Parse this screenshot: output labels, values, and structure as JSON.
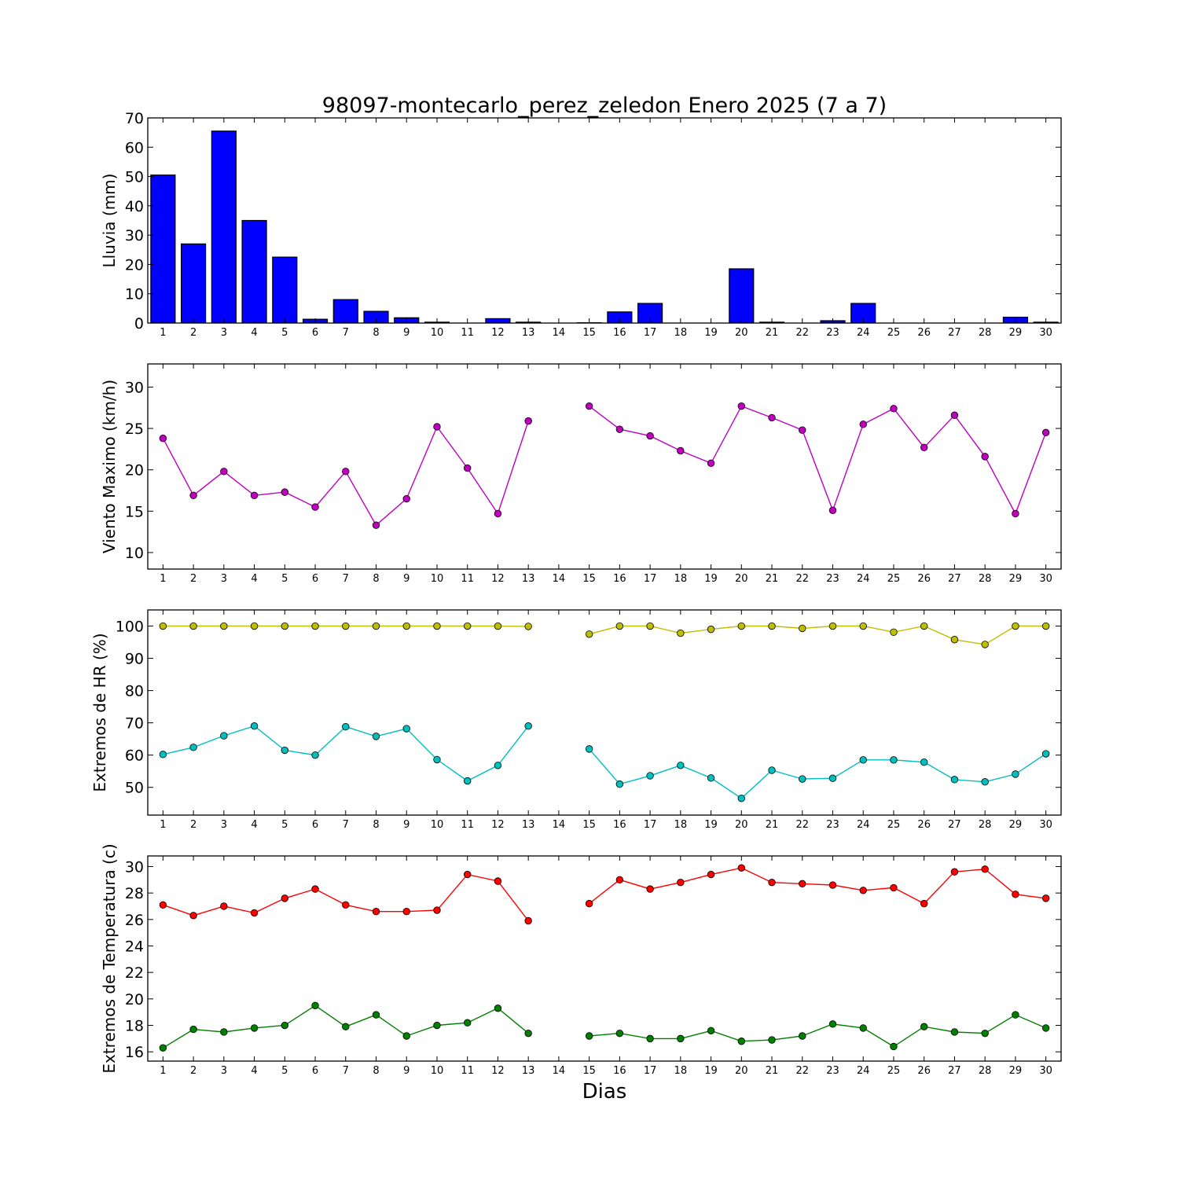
{
  "chart_data": {
    "title": "98097-montecarlo_perez_zeledon Enero 2025  (7 a 7)",
    "xlabel": "Dias",
    "days": [
      1,
      2,
      3,
      4,
      5,
      6,
      7,
      8,
      9,
      10,
      11,
      12,
      13,
      14,
      15,
      16,
      17,
      18,
      19,
      20,
      21,
      22,
      23,
      24,
      25,
      26,
      27,
      28,
      29,
      30
    ],
    "panels": [
      {
        "type": "bar",
        "ylabel": "Lluvia (mm)",
        "ylim": [
          0,
          70
        ],
        "yticks": [
          0,
          10,
          20,
          30,
          40,
          50,
          60,
          70
        ],
        "series": [
          {
            "color": "#0000ff",
            "values": [
              50.5,
              27.0,
              65.5,
              35.0,
              22.5,
              1.3,
              8.0,
              4.0,
              1.8,
              0.3,
              0,
              1.5,
              0.3,
              0,
              0.1,
              3.8,
              6.7,
              0,
              0,
              18.5,
              0.3,
              0,
              0.8,
              6.7,
              0,
              0,
              0,
              0,
              2.0,
              0.3
            ]
          }
        ]
      },
      {
        "type": "line",
        "ylabel": "Viento Maximo (km/h)",
        "ylim": [
          8,
          32.8
        ],
        "yticks": [
          10,
          15,
          20,
          25,
          30
        ],
        "series": [
          {
            "color": "#bf00bf",
            "values": [
              23.8,
              16.9,
              19.8,
              16.9,
              17.3,
              15.5,
              19.8,
              13.3,
              16.5,
              25.2,
              20.2,
              14.7,
              25.9,
              null,
              27.7,
              24.9,
              24.1,
              22.3,
              20.8,
              27.7,
              26.3,
              24.8,
              15.1,
              25.5,
              27.4,
              22.7,
              26.6,
              21.6,
              14.7,
              24.5
            ]
          }
        ]
      },
      {
        "type": "line",
        "ylabel": "Extremos de HR (%)",
        "ylim": [
          41.4,
          105
        ],
        "yticks": [
          50,
          60,
          70,
          80,
          90,
          100
        ],
        "series": [
          {
            "color": "#bfbf00",
            "values": [
              100,
              100,
              100,
              100,
              100,
              100,
              100,
              100,
              100,
              100,
              100,
              100,
              99.9,
              null,
              97.5,
              100,
              100,
              97.8,
              99.0,
              100,
              100,
              99.3,
              100,
              100,
              98.1,
              100,
              95.8,
              94.3,
              100,
              100
            ]
          },
          {
            "color": "#00bfbf",
            "values": [
              60.2,
              62.4,
              66.0,
              69.0,
              61.5,
              60.0,
              68.8,
              65.8,
              68.2,
              58.6,
              52.0,
              56.8,
              69.0,
              null,
              61.9,
              51.0,
              53.6,
              56.8,
              52.9,
              46.6,
              55.3,
              52.6,
              52.8,
              58.5,
              58.5,
              57.8,
              52.4,
              51.7,
              54.1,
              60.4
            ]
          }
        ]
      },
      {
        "type": "line",
        "ylabel": "Extremos de Temperatura (c)",
        "ylim": [
          15.3,
          30.8
        ],
        "yticks": [
          16,
          18,
          20,
          22,
          24,
          26,
          28,
          30
        ],
        "series": [
          {
            "color": "#ff0000",
            "values": [
              27.1,
              26.3,
              27.0,
              26.5,
              27.6,
              28.3,
              27.1,
              26.6,
              26.6,
              26.7,
              29.4,
              28.9,
              25.9,
              null,
              27.2,
              29.0,
              28.3,
              28.8,
              29.4,
              29.9,
              28.8,
              28.7,
              28.6,
              28.2,
              28.4,
              27.2,
              29.6,
              29.8,
              27.9,
              27.6
            ]
          },
          {
            "color": "#008000",
            "values": [
              16.3,
              17.7,
              17.5,
              17.8,
              18.0,
              19.5,
              17.9,
              18.8,
              17.2,
              18.0,
              18.2,
              19.3,
              17.4,
              null,
              17.2,
              17.4,
              17.0,
              17.0,
              17.6,
              16.8,
              16.9,
              17.2,
              18.1,
              17.8,
              16.4,
              17.9,
              17.5,
              17.4,
              18.8,
              17.8
            ]
          }
        ]
      }
    ]
  }
}
